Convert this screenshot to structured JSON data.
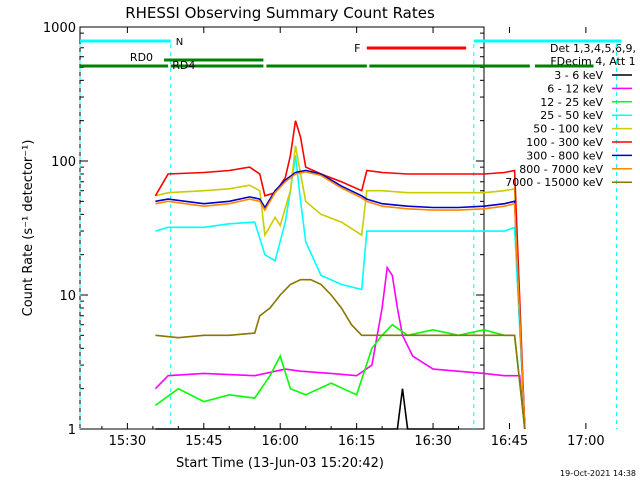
{
  "chart_data": {
    "type": "line",
    "title": "RHESSI Observing Summary Count Rates",
    "xlabel": "Start Time (13-Jun-03 15:20:42)",
    "ylabel": "Count Rate (s⁻¹ detector⁻¹)",
    "yscale": "log",
    "ylim": [
      1,
      1000
    ],
    "xlim_minutes": [
      20.7,
      100
    ],
    "x_ticks": [
      {
        "label": "15:30",
        "minute": 30
      },
      {
        "label": "15:45",
        "minute": 45
      },
      {
        "label": "16:00",
        "minute": 60
      },
      {
        "label": "16:15",
        "minute": 75
      },
      {
        "label": "16:30",
        "minute": 90
      },
      {
        "label": "16:45",
        "minute": 105
      },
      {
        "label": "17:00",
        "minute": 120
      }
    ],
    "y_ticks": [
      {
        "label": "1",
        "value": 1
      },
      {
        "label": "10",
        "value": 10
      },
      {
        "label": "100",
        "value": 100
      },
      {
        "label": "1000",
        "value": 1000
      }
    ],
    "legend_header": [
      "Det 1,3,4,5,6,9,",
      "FDecim 4, Att 1"
    ],
    "series": [
      {
        "name": "3 - 6 keV",
        "color": "#000000",
        "points": [
          [
            35.5,
            1.0
          ],
          [
            83,
            1.0
          ],
          [
            84,
            2.0
          ],
          [
            85,
            1.0
          ],
          [
            95,
            1.0
          ]
        ]
      },
      {
        "name": "6 - 12 keV",
        "color": "#ff00ff",
        "points": [
          [
            35.5,
            2.0
          ],
          [
            38,
            2.5
          ],
          [
            45,
            2.6
          ],
          [
            55,
            2.5
          ],
          [
            61,
            2.8
          ],
          [
            64,
            2.7
          ],
          [
            70,
            2.6
          ],
          [
            75,
            2.5
          ],
          [
            78,
            3.0
          ],
          [
            80,
            8.0
          ],
          [
            81,
            16.0
          ],
          [
            82,
            14.0
          ],
          [
            83,
            8.0
          ],
          [
            84,
            5.0
          ],
          [
            86,
            3.5
          ],
          [
            90,
            2.8
          ],
          [
            100,
            2.6
          ],
          [
            104,
            2.5
          ],
          [
            107,
            2.5
          ],
          [
            108,
            1.0
          ]
        ]
      },
      {
        "name": "12 - 25 keV",
        "color": "#00ff00",
        "points": [
          [
            35.5,
            1.5
          ],
          [
            40,
            2.0
          ],
          [
            45,
            1.6
          ],
          [
            50,
            1.8
          ],
          [
            55,
            1.7
          ],
          [
            58,
            2.5
          ],
          [
            60,
            3.5
          ],
          [
            62,
            2.0
          ],
          [
            65,
            1.8
          ],
          [
            70,
            2.2
          ],
          [
            75,
            1.8
          ],
          [
            78,
            4.0
          ],
          [
            80,
            5.0
          ],
          [
            82,
            6.0
          ],
          [
            85,
            5.0
          ],
          [
            90,
            5.5
          ],
          [
            95,
            5.0
          ],
          [
            100,
            5.5
          ],
          [
            104,
            5.0
          ],
          [
            106,
            5.0
          ],
          [
            108,
            1.0
          ]
        ]
      },
      {
        "name": "25 - 50 keV",
        "color": "#00ffff",
        "points": [
          [
            35.5,
            30
          ],
          [
            38,
            32
          ],
          [
            45,
            32
          ],
          [
            50,
            34
          ],
          [
            55,
            35
          ],
          [
            57,
            20
          ],
          [
            59,
            18
          ],
          [
            61,
            35
          ],
          [
            62,
            60
          ],
          [
            63,
            110
          ],
          [
            64,
            50
          ],
          [
            65,
            25
          ],
          [
            68,
            14
          ],
          [
            72,
            12
          ],
          [
            76,
            11
          ],
          [
            77,
            30
          ],
          [
            80,
            30
          ],
          [
            85,
            30
          ],
          [
            90,
            30
          ],
          [
            95,
            30
          ],
          [
            100,
            30
          ],
          [
            104,
            30
          ],
          [
            106,
            32
          ],
          [
            108,
            1.0
          ]
        ]
      },
      {
        "name": "50 - 100 keV",
        "color": "#cccc00",
        "points": [
          [
            35.5,
            55
          ],
          [
            38,
            58
          ],
          [
            45,
            60
          ],
          [
            50,
            62
          ],
          [
            54,
            66
          ],
          [
            56,
            60
          ],
          [
            57,
            28
          ],
          [
            59,
            38
          ],
          [
            60,
            33
          ],
          [
            62,
            60
          ],
          [
            63,
            130
          ],
          [
            64,
            80
          ],
          [
            65,
            50
          ],
          [
            68,
            40
          ],
          [
            72,
            35
          ],
          [
            76,
            28
          ],
          [
            77,
            60
          ],
          [
            80,
            60
          ],
          [
            85,
            58
          ],
          [
            90,
            58
          ],
          [
            95,
            58
          ],
          [
            100,
            58
          ],
          [
            104,
            60
          ],
          [
            106,
            62
          ],
          [
            108,
            1.0
          ]
        ]
      },
      {
        "name": "100 - 300 keV",
        "color": "#ff0000",
        "points": [
          [
            35.5,
            55
          ],
          [
            38,
            80
          ],
          [
            45,
            82
          ],
          [
            50,
            85
          ],
          [
            54,
            90
          ],
          [
            56,
            80
          ],
          [
            57,
            55
          ],
          [
            59,
            58
          ],
          [
            61,
            75
          ],
          [
            62,
            110
          ],
          [
            63,
            200
          ],
          [
            64,
            150
          ],
          [
            65,
            90
          ],
          [
            68,
            80
          ],
          [
            72,
            70
          ],
          [
            76,
            60
          ],
          [
            77,
            85
          ],
          [
            80,
            82
          ],
          [
            85,
            80
          ],
          [
            90,
            80
          ],
          [
            95,
            80
          ],
          [
            100,
            80
          ],
          [
            104,
            82
          ],
          [
            106,
            85
          ],
          [
            108,
            1.0
          ]
        ]
      },
      {
        "name": "300 - 800 keV",
        "color": "#0000cc",
        "points": [
          [
            35.5,
            50
          ],
          [
            38,
            52
          ],
          [
            45,
            48
          ],
          [
            50,
            50
          ],
          [
            54,
            54
          ],
          [
            56,
            52
          ],
          [
            57,
            45
          ],
          [
            59,
            60
          ],
          [
            61,
            72
          ],
          [
            63,
            82
          ],
          [
            65,
            85
          ],
          [
            68,
            80
          ],
          [
            72,
            65
          ],
          [
            76,
            55
          ],
          [
            77,
            52
          ],
          [
            80,
            48
          ],
          [
            85,
            46
          ],
          [
            90,
            45
          ],
          [
            95,
            45
          ],
          [
            100,
            46
          ],
          [
            104,
            48
          ],
          [
            106,
            50
          ],
          [
            108,
            1.0
          ]
        ]
      },
      {
        "name": "800 - 7000 keV",
        "color": "#ff8800",
        "points": [
          [
            35.5,
            48
          ],
          [
            38,
            50
          ],
          [
            45,
            46
          ],
          [
            50,
            48
          ],
          [
            54,
            52
          ],
          [
            56,
            50
          ],
          [
            57,
            43
          ],
          [
            59,
            58
          ],
          [
            61,
            70
          ],
          [
            63,
            80
          ],
          [
            65,
            83
          ],
          [
            68,
            78
          ],
          [
            72,
            63
          ],
          [
            76,
            53
          ],
          [
            77,
            50
          ],
          [
            80,
            46
          ],
          [
            85,
            44
          ],
          [
            90,
            43
          ],
          [
            95,
            43
          ],
          [
            100,
            44
          ],
          [
            104,
            46
          ],
          [
            106,
            48
          ],
          [
            108,
            1.0
          ]
        ]
      },
      {
        "name": "7000 - 15000 keV",
        "color": "#887700",
        "points": [
          [
            35.5,
            5
          ],
          [
            40,
            4.8
          ],
          [
            45,
            5
          ],
          [
            50,
            5
          ],
          [
            55,
            5.2
          ],
          [
            56,
            7
          ],
          [
            58,
            8
          ],
          [
            60,
            10
          ],
          [
            62,
            12
          ],
          [
            64,
            13
          ],
          [
            66,
            13
          ],
          [
            68,
            12
          ],
          [
            70,
            10
          ],
          [
            72,
            8
          ],
          [
            74,
            6
          ],
          [
            76,
            5
          ],
          [
            80,
            5
          ],
          [
            85,
            5
          ],
          [
            90,
            5
          ],
          [
            95,
            5
          ],
          [
            100,
            5
          ],
          [
            104,
            5
          ],
          [
            106,
            5
          ],
          [
            108,
            1.0
          ]
        ]
      }
    ],
    "annotations": {
      "n_label": "N",
      "f_label": "F",
      "rd0_label": "RD0",
      "rd4_label": "RD4",
      "night_color": "#00ffff",
      "flare_color": "#ff0000",
      "rd_color": "#008000",
      "night_segments": [
        [
          20.7,
          38.5
        ],
        [
          98,
          127
        ]
      ],
      "flare_segments": [
        [
          77,
          96.5
        ]
      ],
      "rd_segments": [
        [
          20.7,
          38
        ],
        [
          38.5,
          56.7
        ],
        [
          57.3,
          77
        ],
        [
          77.5,
          109
        ],
        [
          110,
          121.5
        ]
      ],
      "dashed_x": [
        20.7,
        38.5,
        98,
        126
      ]
    },
    "grid": false,
    "legend_position": "right"
  },
  "footer": {
    "timestamp": "19-Oct-2021 14:38"
  }
}
